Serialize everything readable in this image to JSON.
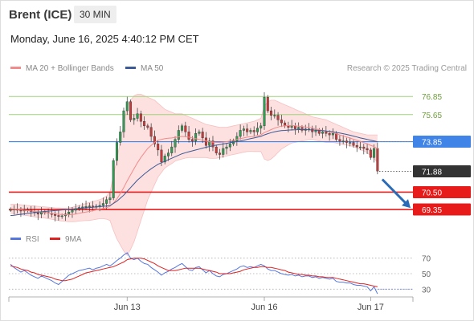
{
  "header": {
    "instrument": "Brent (ICE)",
    "timeframe": "30 MIN",
    "datetime": "Monday, June 16, 2025 4:40:12 PM CET"
  },
  "legend": {
    "bollinger": "MA 20 + Bollinger Bands",
    "ma50": "MA 50",
    "rsi": "RSI",
    "ma9": "9MA",
    "credit": "Research © 2025 Trading Central"
  },
  "colors": {
    "bollinger": "#f28b8b",
    "band_fill": "#fde0e0",
    "ma50": "#3c5a96",
    "resistance": "#9fd27a",
    "pivot": "#3f84e6",
    "support": "#e81b1b",
    "last": "#333333",
    "rsi": "#5577dd",
    "ma9": "#dd2222"
  },
  "chart_data": [
    {
      "type": "candlestick",
      "x_labels": [
        "Jun 13",
        "Jun 16",
        "Jun 17"
      ],
      "ylim": [
        68.5,
        78.3
      ],
      "levels": [
        {
          "value": 76.85,
          "label": "76.85",
          "kind": "resistance"
        },
        {
          "value": 75.65,
          "label": "75.65",
          "kind": "resistance"
        },
        {
          "value": 73.85,
          "label": "73.85",
          "kind": "pivot"
        },
        {
          "value": 71.88,
          "label": "71.88",
          "kind": "last"
        },
        {
          "value": 70.5,
          "label": "70.50",
          "kind": "support"
        },
        {
          "value": 69.35,
          "label": "69.35",
          "kind": "support"
        }
      ],
      "close": [
        69.34,
        69.37,
        69.3,
        69.25,
        69.33,
        69.3,
        69.2,
        69.12,
        69.04,
        69.18,
        69.15,
        69.1,
        69.02,
        68.95,
        68.88,
        68.93,
        69.05,
        69.18,
        69.3,
        69.4,
        69.48,
        69.52,
        69.55,
        69.58,
        69.5,
        69.57,
        69.62,
        69.75,
        70.0,
        70.12,
        72.6,
        73.8,
        74.5,
        75.9,
        76.5,
        75.3,
        75.4,
        75.7,
        75.2,
        74.9,
        74.8,
        74.2,
        73.7,
        73.3,
        72.5,
        72.9,
        73.1,
        73.5,
        74.0,
        74.6,
        74.9,
        74.5,
        74.0,
        73.9,
        74.4,
        74.5,
        74.1,
        73.6,
        73.9,
        73.5,
        73.1,
        73.0,
        73.4,
        73.5,
        73.7,
        73.9,
        74.2,
        74.6,
        74.7,
        74.5,
        74.6,
        74.5,
        74.75,
        74.9,
        76.8,
        75.9,
        75.6,
        75.6,
        75.3,
        75.1,
        74.9,
        74.8,
        74.9,
        74.7,
        74.8,
        74.6,
        74.7,
        74.7,
        74.5,
        74.6,
        74.4,
        74.5,
        74.4,
        74.3,
        74.4,
        74.0,
        73.9,
        73.9,
        73.8,
        73.8,
        73.6,
        73.5,
        73.5,
        73.4,
        73.3,
        72.8,
        73.4,
        71.9
      ],
      "ma20": [
        69.4,
        69.38,
        69.36,
        69.33,
        69.3,
        69.28,
        69.25,
        69.22,
        69.19,
        69.17,
        69.15,
        69.12,
        69.09,
        69.06,
        69.03,
        69.01,
        69.0,
        69.0,
        69.02,
        69.05,
        69.1,
        69.14,
        69.18,
        69.22,
        69.27,
        69.32,
        69.37,
        69.42,
        69.48,
        69.56,
        69.78,
        70.05,
        70.4,
        70.8,
        71.25,
        71.65,
        72.05,
        72.45,
        72.8,
        73.1,
        73.4,
        73.6,
        73.8,
        73.95,
        74.0,
        74.05,
        74.08,
        74.1,
        74.13,
        74.17,
        74.2,
        74.18,
        74.15,
        74.1,
        74.05,
        74.0,
        73.95,
        73.9,
        73.85,
        73.82,
        73.8,
        73.8,
        73.82,
        73.85,
        73.9,
        73.95,
        74.0,
        74.05,
        74.1,
        74.15,
        74.18,
        74.2,
        74.25,
        74.3,
        74.45,
        74.55,
        74.65,
        74.75,
        74.82,
        74.88,
        74.9,
        74.92,
        74.93,
        74.9,
        74.88,
        74.85,
        74.82,
        74.8,
        74.75,
        74.7,
        74.65,
        74.6,
        74.55,
        74.5,
        74.45,
        74.38,
        74.3,
        74.23,
        74.16,
        74.09,
        74.01,
        73.94,
        73.86,
        73.79,
        73.71,
        73.61,
        73.52,
        73.38
      ],
      "bb_upper": [
        69.7,
        69.7,
        69.68,
        69.66,
        69.64,
        69.62,
        69.6,
        69.58,
        69.56,
        69.54,
        69.52,
        69.5,
        69.48,
        69.46,
        69.45,
        69.44,
        69.44,
        69.46,
        69.5,
        69.55,
        69.62,
        69.68,
        69.75,
        69.82,
        69.88,
        69.94,
        70.0,
        70.1,
        70.25,
        70.5,
        71.6,
        72.7,
        73.8,
        75.0,
        76.2,
        76.6,
        76.9,
        77.0,
        77.0,
        76.9,
        76.8,
        76.7,
        76.6,
        76.4,
        76.2,
        76.0,
        75.9,
        75.8,
        75.7,
        75.7,
        75.7,
        75.6,
        75.5,
        75.4,
        75.3,
        75.2,
        75.1,
        75.0,
        74.95,
        74.9,
        74.85,
        74.8,
        74.8,
        74.8,
        74.85,
        74.9,
        74.95,
        75.0,
        75.05,
        75.1,
        75.15,
        75.2,
        75.3,
        75.4,
        76.2,
        76.5,
        76.6,
        76.6,
        76.5,
        76.4,
        76.3,
        76.2,
        76.1,
        76.0,
        75.9,
        75.8,
        75.7,
        75.6,
        75.5,
        75.45,
        75.4,
        75.35,
        75.3,
        75.2,
        75.1,
        75.0,
        74.9,
        74.8,
        74.7,
        74.6,
        74.5,
        74.45,
        74.4,
        74.35,
        74.3,
        74.3,
        74.3,
        74.3
      ],
      "bb_lower": [
        69.1,
        69.06,
        69.04,
        69.0,
        68.96,
        68.94,
        68.9,
        68.86,
        68.82,
        68.8,
        68.78,
        68.74,
        68.7,
        68.66,
        68.61,
        68.58,
        68.56,
        68.54,
        68.54,
        68.55,
        68.58,
        68.6,
        68.61,
        68.62,
        68.66,
        68.7,
        68.74,
        68.74,
        68.71,
        68.62,
        67.96,
        67.4,
        67.0,
        66.6,
        66.3,
        66.7,
        67.2,
        67.9,
        68.6,
        69.3,
        70.0,
        70.5,
        71.0,
        71.5,
        71.8,
        72.1,
        72.26,
        72.4,
        72.56,
        72.64,
        72.7,
        72.76,
        72.8,
        72.8,
        72.8,
        72.8,
        72.8,
        72.8,
        72.75,
        72.74,
        72.75,
        72.8,
        72.84,
        72.9,
        72.95,
        73.0,
        73.05,
        73.1,
        73.15,
        73.2,
        73.21,
        73.2,
        73.2,
        73.2,
        72.7,
        72.6,
        72.7,
        72.9,
        73.14,
        73.36,
        73.5,
        73.64,
        73.76,
        73.8,
        73.86,
        73.9,
        73.94,
        74.0,
        74.0,
        73.95,
        73.9,
        73.85,
        73.8,
        73.8,
        73.8,
        73.76,
        73.7,
        73.66,
        73.62,
        73.58,
        73.52,
        73.43,
        73.32,
        73.23,
        73.12,
        72.92,
        72.74,
        72.46
      ],
      "ma50": [
        68.95,
        68.97,
        69.0,
        69.03,
        69.06,
        69.09,
        69.12,
        69.15,
        69.18,
        69.2,
        69.22,
        69.24,
        69.26,
        69.28,
        69.3,
        69.32,
        69.34,
        69.36,
        69.38,
        69.4,
        69.42,
        69.44,
        69.46,
        69.48,
        69.5,
        69.52,
        69.54,
        69.56,
        69.58,
        69.62,
        69.75,
        69.9,
        70.1,
        70.3,
        70.55,
        70.8,
        71.05,
        71.3,
        71.5,
        71.7,
        71.88,
        72.05,
        72.2,
        72.35,
        72.45,
        72.55,
        72.65,
        72.75,
        72.85,
        72.95,
        73.05,
        73.12,
        73.18,
        73.24,
        73.3,
        73.36,
        73.42,
        73.48,
        73.53,
        73.58,
        73.62,
        73.66,
        73.7,
        73.74,
        73.78,
        73.82,
        73.86,
        73.9,
        73.95,
        74.0,
        74.05,
        74.1,
        74.15,
        74.2,
        74.3,
        74.38,
        74.45,
        74.5,
        74.55,
        74.58,
        74.6,
        74.62,
        74.63,
        74.64,
        74.65,
        74.65,
        74.65,
        74.64,
        74.63,
        74.62,
        74.6,
        74.58,
        74.56,
        74.53,
        74.5,
        74.46,
        74.42,
        74.38,
        74.33,
        74.28,
        74.22,
        74.16,
        74.1,
        74.05,
        74.0,
        73.95,
        73.9,
        73.85
      ],
      "event_x_labels": [
        {
          "label": "Jun 13",
          "index": 34
        },
        {
          "label": "Jun 16",
          "index": 74
        },
        {
          "label": "Jun 17",
          "index": 105
        }
      ]
    },
    {
      "type": "line",
      "title": "RSI",
      "ylim": [
        20,
        80
      ],
      "y_ticks": [
        "70",
        "50",
        "30"
      ],
      "series": [
        {
          "name": "RSI",
          "values": [
            62,
            58,
            55,
            52,
            54,
            51,
            48,
            46,
            44,
            47,
            45,
            43,
            41,
            38,
            36,
            40,
            44,
            48,
            50,
            52,
            54,
            55,
            56,
            57,
            55,
            57,
            58,
            60,
            62,
            60,
            63,
            67,
            70,
            74,
            77,
            70,
            68,
            70,
            66,
            63,
            62,
            58,
            55,
            52,
            48,
            51,
            53,
            56,
            58,
            61,
            63,
            59,
            55,
            54,
            58,
            59,
            55,
            51,
            54,
            50,
            47,
            46,
            49,
            50,
            52,
            54,
            56,
            59,
            60,
            58,
            59,
            58,
            60,
            62,
            60,
            56,
            54,
            54,
            52,
            50,
            49,
            48,
            49,
            47,
            48,
            46,
            47,
            47,
            45,
            46,
            44,
            45,
            44,
            43,
            44,
            40,
            39,
            39,
            38,
            38,
            36,
            35,
            35,
            34,
            33,
            28,
            33,
            24
          ]
        },
        {
          "name": "9MA",
          "values": [
            60,
            59,
            58,
            56,
            55,
            54,
            52,
            51,
            49,
            48,
            47,
            46,
            45,
            43,
            42,
            41,
            41,
            42,
            43,
            45,
            47,
            49,
            51,
            52,
            53,
            54,
            55,
            56,
            57,
            58,
            59,
            61,
            63,
            65,
            68,
            69,
            70,
            70,
            70,
            69,
            67,
            65,
            63,
            60,
            58,
            56,
            54,
            54,
            54,
            55,
            56,
            57,
            57,
            57,
            57,
            57,
            56,
            55,
            54,
            53,
            52,
            50,
            50,
            50,
            50,
            51,
            52,
            53,
            55,
            56,
            57,
            58,
            58,
            59,
            59,
            58,
            58,
            57,
            56,
            55,
            54,
            52,
            51,
            50,
            49,
            49,
            48,
            48,
            47,
            47,
            46,
            46,
            45,
            45,
            45,
            44,
            43,
            42,
            41,
            40,
            39,
            38,
            37,
            37,
            36,
            35,
            34,
            33
          ]
        }
      ]
    }
  ]
}
